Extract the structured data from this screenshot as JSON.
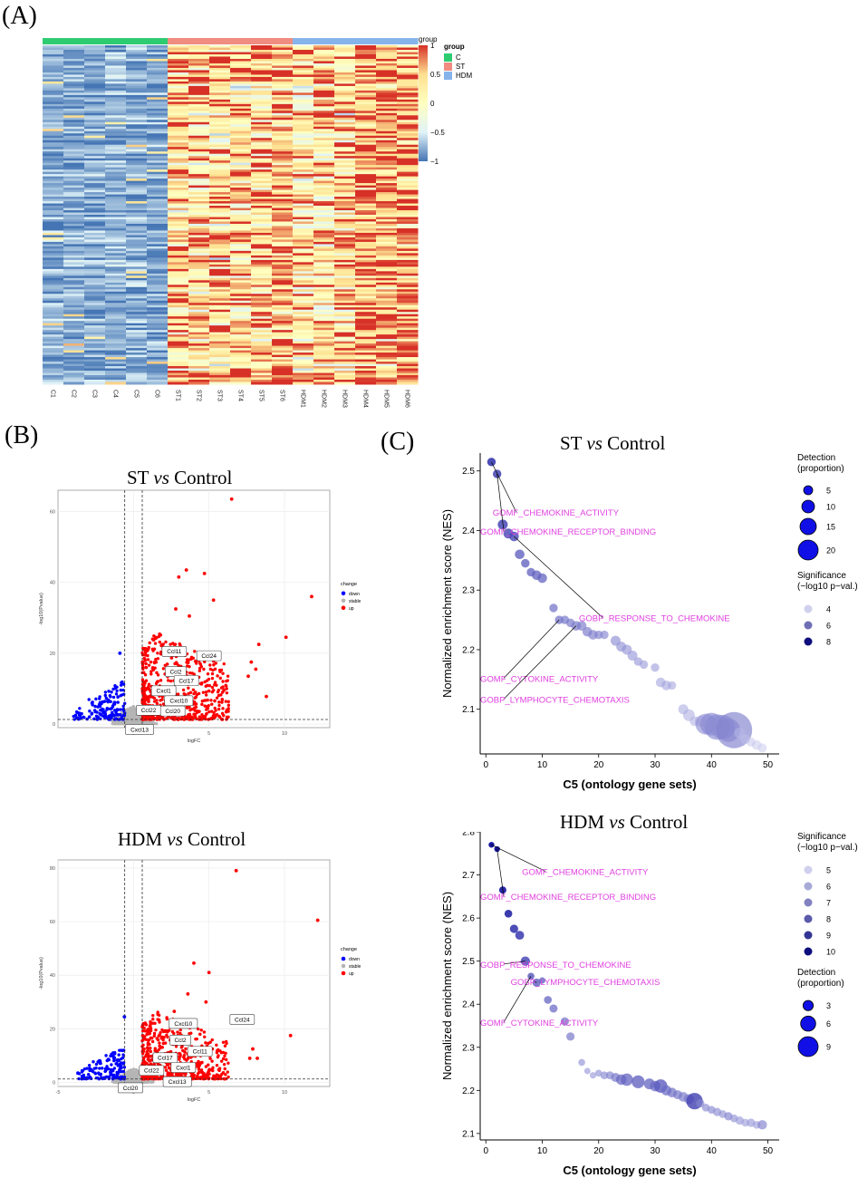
{
  "panels": {
    "a": "(A)",
    "b": "(B)",
    "c": "(C)"
  },
  "chart_data": [
    {
      "type": "heatmap",
      "title": "",
      "columns": [
        "C1",
        "C2",
        "C3",
        "C4",
        "C5",
        "C6",
        "ST1",
        "ST2",
        "ST3",
        "ST4",
        "ST5",
        "ST6",
        "HDM1",
        "HDM2",
        "HDM3",
        "HDM4",
        "HDM5",
        "HDM6"
      ],
      "column_groups": [
        "C",
        "C",
        "C",
        "C",
        "C",
        "C",
        "ST",
        "ST",
        "ST",
        "ST",
        "ST",
        "ST",
        "HDM",
        "HDM",
        "HDM",
        "HDM",
        "HDM",
        "HDM"
      ],
      "group_legend": {
        "title": "group",
        "entries": [
          {
            "label": "C",
            "color": "#2ecc71"
          },
          {
            "label": "ST",
            "color": "#f08c80"
          },
          {
            "label": "HDM",
            "color": "#86b4ea"
          }
        ]
      },
      "scale": {
        "label": "group",
        "range": [
          -1,
          1
        ],
        "ticks": [
          1,
          0.5,
          0,
          -0.5,
          -1
        ],
        "tick_labels": [
          "1",
          "0.5",
          "0",
          "−0.5",
          "−1"
        ],
        "colors": [
          "#d73027",
          "#fee090",
          "#ffffbf",
          "#e0f3f8",
          "#4575b4"
        ]
      },
      "n_rows_approx": 150,
      "column_means": [
        -0.78,
        -0.78,
        -0.8,
        -0.76,
        -0.78,
        -0.8,
        0.32,
        0.3,
        0.2,
        0.25,
        0.35,
        0.45,
        0.22,
        0.25,
        0.25,
        0.55,
        0.5,
        0.6
      ]
    },
    {
      "type": "scatter",
      "title": "ST vs Control",
      "title_parts": [
        "ST ",
        "vs",
        " Control"
      ],
      "xlabel": "logFC",
      "ylabel": "-log10(Pvalue)",
      "xlim": [
        -5,
        13
      ],
      "ylim": [
        -1,
        66
      ],
      "xticks": [
        0,
        5,
        10
      ],
      "yticks": [
        0,
        20,
        40,
        60
      ],
      "vlines": [
        -0.58,
        0.58
      ],
      "hline": 1.3,
      "legend": {
        "title": "change",
        "entries": [
          {
            "label": "down",
            "color": "#0000ff"
          },
          {
            "label": "stable",
            "color": "#b5b5b5"
          },
          {
            "label": "up",
            "color": "#ff0000"
          }
        ]
      },
      "highlight_points": [
        {
          "x": 6.5,
          "y": 63.5
        },
        {
          "x": 11.8,
          "y": 36
        },
        {
          "x": 10.1,
          "y": 24.5
        },
        {
          "x": 4.7,
          "y": 42.5
        },
        {
          "x": 3.5,
          "y": 43.5
        },
        {
          "x": 3.0,
          "y": 41.5
        },
        {
          "x": 5.3,
          "y": 35
        },
        {
          "x": 8.3,
          "y": 22.5
        },
        {
          "x": 8.1,
          "y": 15.5
        },
        {
          "x": 7.8,
          "y": 17.5
        },
        {
          "x": 7.6,
          "y": 13.5
        },
        {
          "x": 8.8,
          "y": 7.8
        },
        {
          "x": -0.9,
          "y": 20
        },
        {
          "x": 3.7,
          "y": 30.5
        },
        {
          "x": 2.8,
          "y": 32.5
        }
      ],
      "cloud_up": {
        "x_range": [
          0.58,
          6.3
        ],
        "y_peak": 25
      },
      "cloud_down": {
        "x_range": [
          -4.3,
          -0.58
        ],
        "y_peak": 11
      },
      "labels": [
        {
          "text": "Ccl11",
          "x": 2.7,
          "y": 20.5
        },
        {
          "text": "Ccl24",
          "x": 5.0,
          "y": 19.3
        },
        {
          "text": "Ccl2",
          "x": 2.8,
          "y": 14.8
        },
        {
          "text": "Ccl17",
          "x": 3.5,
          "y": 12.3
        },
        {
          "text": "Cxcl1",
          "x": 2.0,
          "y": 9.4
        },
        {
          "text": "Cxcl10",
          "x": 3.0,
          "y": 6.6
        },
        {
          "text": "Ccl22",
          "x": 1.0,
          "y": 3.9
        },
        {
          "text": "Ccl20",
          "x": 2.6,
          "y": 3.7
        },
        {
          "text": "Cxcl13",
          "x": 0.4,
          "y": -1.5
        }
      ]
    },
    {
      "type": "scatter",
      "title": "HDM vs Control",
      "title_parts": [
        "HDM ",
        "vs",
        " Control"
      ],
      "xlabel": "logFC",
      "ylabel": "-log10(Pvalue)",
      "xlim": [
        -5,
        13
      ],
      "ylim": [
        -1.5,
        83
      ],
      "xticks": [
        -5,
        0,
        5,
        10
      ],
      "yticks": [
        0,
        20,
        40,
        60,
        80
      ],
      "vlines": [
        -0.58,
        0.58
      ],
      "hline": 1.3,
      "legend": {
        "title": "change",
        "entries": [
          {
            "label": "down",
            "color": "#0000ff"
          },
          {
            "label": "stable",
            "color": "#b5b5b5"
          },
          {
            "label": "up",
            "color": "#ff0000"
          }
        ]
      },
      "highlight_points": [
        {
          "x": 6.8,
          "y": 79
        },
        {
          "x": 12.2,
          "y": 60.5
        },
        {
          "x": 10.4,
          "y": 17.5
        },
        {
          "x": 4.0,
          "y": 44.5
        },
        {
          "x": 5.0,
          "y": 41
        },
        {
          "x": 3.6,
          "y": 33
        },
        {
          "x": 4.8,
          "y": 30
        },
        {
          "x": 2.7,
          "y": 26.5
        },
        {
          "x": 7.2,
          "y": 23
        },
        {
          "x": 7.9,
          "y": 12.5
        },
        {
          "x": 8.2,
          "y": 9
        },
        {
          "x": 7.7,
          "y": 9
        },
        {
          "x": -0.6,
          "y": 24.5
        }
      ],
      "cloud_up": {
        "x_range": [
          0.58,
          6.3
        ],
        "y_peak": 25
      },
      "cloud_down": {
        "x_range": [
          -4.0,
          -0.58
        ],
        "y_peak": 12
      },
      "labels": [
        {
          "text": "Cxcl10",
          "x": 3.3,
          "y": 22
        },
        {
          "text": "Ccl24",
          "x": 7.2,
          "y": 23.5
        },
        {
          "text": "Ccl2",
          "x": 3.1,
          "y": 15.8
        },
        {
          "text": "Ccl11",
          "x": 4.4,
          "y": 11.6
        },
        {
          "text": "Ccl17",
          "x": 2.1,
          "y": 9.2
        },
        {
          "text": "Cxcl1",
          "x": 3.3,
          "y": 5.6
        },
        {
          "text": "Ccl22",
          "x": 1.2,
          "y": 4.5
        },
        {
          "text": "Cxcl13",
          "x": 2.9,
          "y": 0.3
        },
        {
          "text": "Ccl20",
          "x": -0.2,
          "y": -2.0
        }
      ]
    },
    {
      "type": "scatter",
      "title": "ST vs Control",
      "title_parts": [
        "ST ",
        "vs",
        " Control"
      ],
      "xlabel": "C5 (ontology gene sets)",
      "ylabel": "Normalized enrichment score (NES)",
      "xlim": [
        -1,
        52
      ],
      "ylim": [
        2.025,
        2.53
      ],
      "xticks": [
        0,
        10,
        20,
        30,
        40,
        50
      ],
      "yticks": [
        2.1,
        2.2,
        2.3,
        2.4,
        2.5
      ],
      "points": [
        [
          1,
          2.515,
          4.7,
          8.8
        ],
        [
          2,
          2.495,
          4.7,
          8.4
        ],
        [
          3,
          2.41,
          5.5,
          8.3
        ],
        [
          4,
          2.395,
          5.5,
          8.1
        ],
        [
          5,
          2.39,
          5.3,
          8.0
        ],
        [
          6,
          2.36,
          5.3,
          7.5
        ],
        [
          7,
          2.345,
          4.7,
          7.4
        ],
        [
          8,
          2.33,
          4.7,
          7.3
        ],
        [
          9,
          2.325,
          5.3,
          7.3
        ],
        [
          10,
          2.32,
          5.3,
          7.2
        ],
        [
          12,
          2.27,
          4.7,
          6.8
        ],
        [
          13,
          2.25,
          4.7,
          6.8
        ],
        [
          14,
          2.25,
          4.7,
          6.6
        ],
        [
          15,
          2.245,
          4.7,
          6.5
        ],
        [
          16,
          2.24,
          5.3,
          6.5
        ],
        [
          17,
          2.24,
          5.3,
          6.4
        ],
        [
          18,
          2.23,
          5.3,
          6.4
        ],
        [
          19,
          2.225,
          5.3,
          6.3
        ],
        [
          20,
          2.225,
          4.7,
          6.2
        ],
        [
          21,
          2.225,
          4.7,
          6.1
        ],
        [
          23,
          2.215,
          5.5,
          5.9
        ],
        [
          24,
          2.205,
          5.5,
          5.8
        ],
        [
          25,
          2.2,
          5.5,
          5.7
        ],
        [
          26,
          2.19,
          5.5,
          5.6
        ],
        [
          27,
          2.18,
          4.7,
          5.6
        ],
        [
          28,
          2.175,
          4.7,
          5.5
        ],
        [
          30,
          2.17,
          4.7,
          5.4
        ],
        [
          31,
          2.145,
          5.3,
          5.2
        ],
        [
          32,
          2.14,
          5.3,
          5.2
        ],
        [
          33,
          2.14,
          4.7,
          5.1
        ],
        [
          35,
          2.1,
          5.5,
          5.0
        ],
        [
          36,
          2.09,
          6.5,
          4.9
        ],
        [
          37,
          2.08,
          5.3,
          4.8
        ],
        [
          38,
          2.08,
          6.0,
          4.8
        ],
        [
          39,
          2.075,
          11.5,
          5.8
        ],
        [
          40,
          2.075,
          12.5,
          6.0
        ],
        [
          41,
          2.07,
          14.0,
          6.0
        ],
        [
          42,
          2.07,
          13.5,
          5.9
        ],
        [
          43,
          2.065,
          13.0,
          5.8
        ],
        [
          44,
          2.065,
          20.0,
          6.2
        ],
        [
          45,
          2.06,
          6.0,
          4.5
        ],
        [
          46,
          2.05,
          5.5,
          4.3
        ],
        [
          47,
          2.045,
          5.0,
          4.2
        ],
        [
          48,
          2.04,
          5.3,
          4.1
        ],
        [
          49,
          2.035,
          5.0,
          4.0
        ]
      ],
      "legends": [
        {
          "title": [
            "Detection",
            "(proportion)"
          ],
          "kind": "size",
          "values": [
            5,
            10,
            15,
            20
          ]
        },
        {
          "title": [
            "Significance",
            "(−log10 p−val.)"
          ],
          "kind": "shade",
          "values": [
            4,
            6,
            8
          ]
        }
      ],
      "annotations": [
        {
          "text": "GOMF_CHEMOKINE_ACTIVITY",
          "x": 1.2,
          "y": 2.425,
          "target": [
            1,
            2.515
          ]
        },
        {
          "text": "GOMF_CHEMOKINE_RECEPTOR_BINDING",
          "x": -1,
          "y": 2.393,
          "target": [
            2,
            2.495
          ]
        },
        {
          "text": "GOBP_RESPONSE_TO_CHEMOKINE",
          "x": 16.5,
          "y": 2.248,
          "target": [
            5,
            2.39
          ]
        },
        {
          "text": "GOMF_CYTOKINE_ACTIVITY",
          "x": -1,
          "y": 2.146,
          "target": [
            13,
            2.25
          ]
        },
        {
          "text": "GOBP_LYMPHOCYTE_CHEMOTAXIS",
          "x": -1,
          "y": 2.111,
          "target": [
            16,
            2.24
          ]
        }
      ]
    },
    {
      "type": "scatter",
      "title": "HDM vs Control",
      "title_parts": [
        "HDM ",
        "vs",
        " Control"
      ],
      "xlabel": "C5 (ontology gene sets)",
      "ylabel": "Normalized enrichment score (NES)",
      "xlim": [
        -1,
        52
      ],
      "ylim": [
        2.085,
        2.8
      ],
      "xticks": [
        0,
        10,
        20,
        30,
        40,
        50
      ],
      "yticks": [
        2.1,
        2.2,
        2.3,
        2.4,
        2.5,
        2.6,
        2.7,
        2.8
      ],
      "points": [
        [
          1,
          2.77,
          3.2,
          10.2
        ],
        [
          2,
          2.76,
          3.2,
          10.0
        ],
        [
          3,
          2.665,
          4.0,
          9.6
        ],
        [
          4,
          2.61,
          4.3,
          9.2
        ],
        [
          5,
          2.575,
          4.6,
          8.8
        ],
        [
          6,
          2.56,
          4.9,
          8.6
        ],
        [
          7,
          2.5,
          5.2,
          8.2
        ],
        [
          8,
          2.465,
          3.8,
          7.8
        ],
        [
          9,
          2.45,
          4.6,
          7.6
        ],
        [
          10,
          2.455,
          3.5,
          7.4
        ],
        [
          11,
          2.41,
          4.3,
          7.2
        ],
        [
          12,
          2.39,
          4.5,
          7.0
        ],
        [
          14,
          2.36,
          4.6,
          6.8
        ],
        [
          15,
          2.325,
          4.6,
          6.6
        ],
        [
          17,
          2.265,
          3.8,
          5.8
        ],
        [
          18,
          2.245,
          3.5,
          5.6
        ],
        [
          19,
          2.235,
          3.6,
          5.6
        ],
        [
          20,
          2.24,
          3.8,
          5.8
        ],
        [
          21,
          2.235,
          4.3,
          6.0
        ],
        [
          22,
          2.235,
          4.4,
          6.2
        ],
        [
          23,
          2.23,
          5.0,
          6.6
        ],
        [
          24,
          2.225,
          5.8,
          7.0
        ],
        [
          25,
          2.225,
          6.8,
          7.2
        ],
        [
          27,
          2.22,
          7.1,
          7.4
        ],
        [
          29,
          2.215,
          6.0,
          7.2
        ],
        [
          30,
          2.21,
          5.8,
          7.0
        ],
        [
          31,
          2.21,
          7.4,
          7.6
        ],
        [
          32,
          2.2,
          5.6,
          7.0
        ],
        [
          33,
          2.195,
          5.3,
          6.8
        ],
        [
          34,
          2.19,
          5.0,
          6.6
        ],
        [
          35,
          2.185,
          5.3,
          6.5
        ],
        [
          36,
          2.18,
          5.5,
          6.5
        ],
        [
          37,
          2.175,
          9.1,
          8.2
        ],
        [
          38,
          2.17,
          4.6,
          6.2
        ],
        [
          39,
          2.16,
          4.3,
          6.0
        ],
        [
          40,
          2.155,
          4.3,
          6.0
        ],
        [
          41,
          2.15,
          4.6,
          5.9
        ],
        [
          42,
          2.145,
          4.3,
          5.8
        ],
        [
          43,
          2.14,
          4.6,
          6.2
        ],
        [
          44,
          2.135,
          4.3,
          5.8
        ],
        [
          45,
          2.13,
          4.6,
          5.6
        ],
        [
          46,
          2.125,
          4.3,
          5.5
        ],
        [
          47,
          2.125,
          4.6,
          5.6
        ],
        [
          48,
          2.12,
          4.3,
          5.5
        ],
        [
          49,
          2.12,
          5.2,
          6.2
        ]
      ],
      "legends": [
        {
          "title": [
            "Significance",
            "(−log10 p−val.)"
          ],
          "kind": "shade",
          "values": [
            5,
            6,
            7,
            8,
            9,
            10
          ]
        },
        {
          "title": [
            "Detection",
            "(proportion)"
          ],
          "kind": "size",
          "values": [
            3,
            6,
            9
          ]
        }
      ],
      "annotations": [
        {
          "text": "GOMF_CHEMOKINE_ACTIVITY",
          "x": 6.4,
          "y": 2.7,
          "target": [
            1,
            2.77
          ]
        },
        {
          "text": "GOMF_CHEMOKINE_RECEPTOR_BINDING",
          "x": -1,
          "y": 2.642,
          "target": [
            2,
            2.76
          ]
        },
        {
          "text": "GOBP_RESPONSE_TO_CHEMOKINE",
          "x": -1,
          "y": 2.485,
          "target": [
            7,
            2.5
          ]
        },
        {
          "text": "GOBP_LYMPHOCYTE_CHEMOTAXIS",
          "x": 4.4,
          "y": 2.445,
          "target": [
            9,
            2.45
          ]
        },
        {
          "text": "GOMF_CYTOKINE_ACTIVITY",
          "x": -1,
          "y": 2.35,
          "target": [
            8,
            2.465
          ]
        }
      ]
    }
  ]
}
